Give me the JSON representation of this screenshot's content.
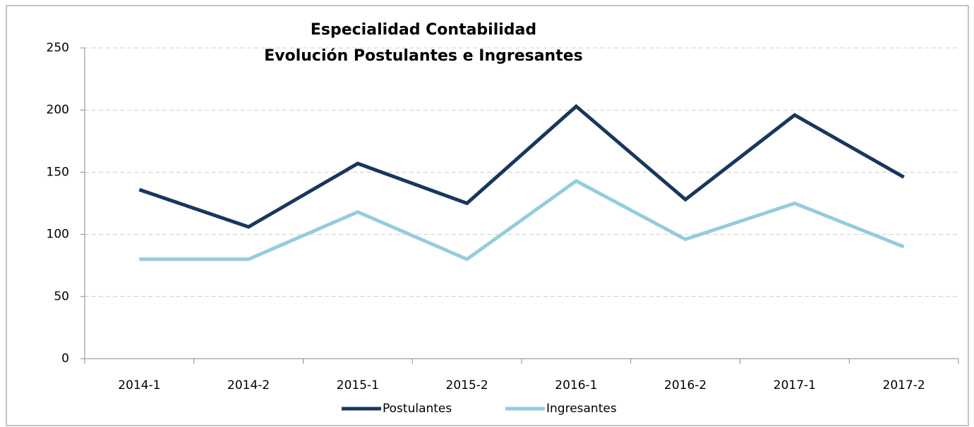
{
  "chart_data": {
    "type": "line",
    "title": [
      "Especialidad Contabilidad",
      "Evolución Postulantes e Ingresantes"
    ],
    "categories": [
      "2014-1",
      "2014-2",
      "2015-1",
      "2015-2",
      "2016-1",
      "2016-2",
      "2017-1",
      "2017-2"
    ],
    "series": [
      {
        "name": "Postulantes",
        "color": "#17375e",
        "values": [
          136,
          106,
          157,
          125,
          203,
          128,
          196,
          146
        ]
      },
      {
        "name": "Ingresantes",
        "color": "#93cddd",
        "values": [
          80,
          80,
          118,
          80,
          143,
          96,
          125,
          90
        ]
      }
    ],
    "ylim": [
      0,
      250
    ],
    "yticks": [
      0,
      50,
      100,
      150,
      200,
      250
    ],
    "grid": true,
    "legend": "bottom"
  }
}
